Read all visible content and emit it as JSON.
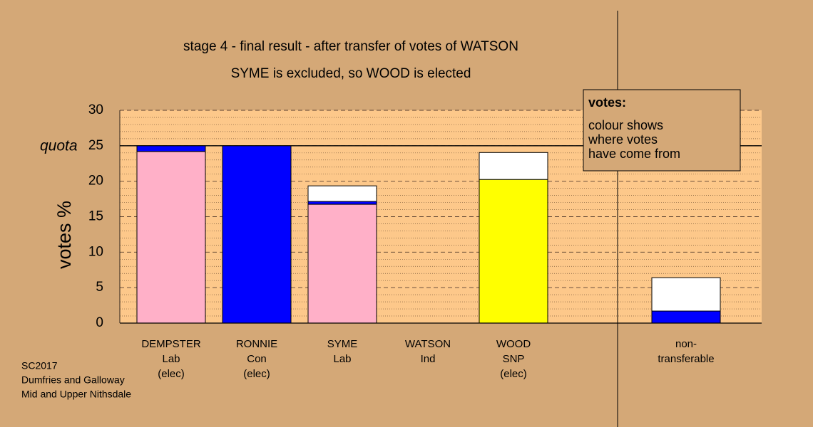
{
  "chart_data": {
    "type": "stacked_bar",
    "title": "stage 4 - final result - after transfer of votes of WATSON",
    "subtitle": "SYME is excluded, so WOOD is elected",
    "y_label": "votes %",
    "categories": [
      [
        "DEMPSTER",
        "Lab",
        "(elec)"
      ],
      [
        "RONNIE",
        "Con",
        "(elec)"
      ],
      [
        "SYME",
        "Lab"
      ],
      [
        "WATSON",
        "Ind"
      ],
      [
        "WOOD",
        "SNP",
        "(elec)"
      ],
      [
        "non-",
        "transferable"
      ]
    ],
    "series": [
      {
        "color": "#ffb0c8",
        "values": [
          24.2,
          0,
          16.75,
          0,
          0,
          0
        ]
      },
      {
        "color": "#0000ff",
        "values": [
          0.8,
          25,
          0.4,
          0,
          0,
          1.7
        ]
      },
      {
        "color": "#ffff00",
        "values": [
          0,
          0,
          0,
          0,
          20.25,
          0
        ]
      },
      {
        "color": "#ffffff",
        "values": [
          0,
          0,
          2.2,
          0,
          3.8,
          4.7
        ]
      }
    ],
    "ylim": [
      0,
      30
    ],
    "yticks": [
      0,
      5,
      10,
      15,
      20,
      25,
      30
    ],
    "minor_yticks": [
      1,
      2,
      3,
      4,
      6,
      7,
      8,
      9,
      11,
      12,
      13,
      14,
      16,
      17,
      18,
      19,
      21,
      22,
      23,
      24,
      26,
      27,
      28,
      29
    ],
    "grid": true,
    "quota": {
      "value": 25,
      "label": "quota"
    },
    "annotation": {
      "heading": "votes:",
      "lines": [
        "colour shows",
        "where votes",
        "have come from"
      ]
    },
    "footnote": [
      "SC2017",
      "Dumfries and Galloway",
      "Mid and Upper Nithsdale"
    ]
  }
}
